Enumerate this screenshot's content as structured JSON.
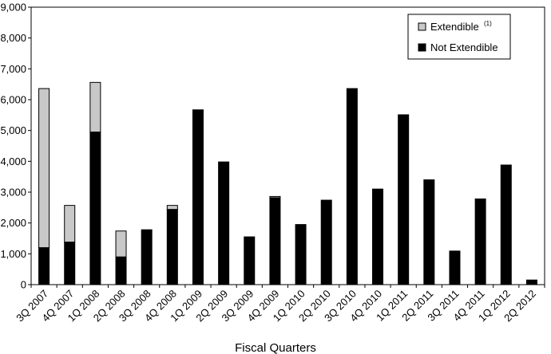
{
  "chart_data": {
    "type": "bar",
    "stacked": true,
    "xlabel": "Fiscal Quarters",
    "ylabel": "",
    "ylim": [
      0,
      9000
    ],
    "ytick_labels": [
      "0",
      "1,000",
      "2,000",
      "3,000",
      "4,000",
      "5,000",
      "6,000",
      "7,000",
      "8,000",
      "9,000"
    ],
    "grid": false,
    "legend_position": "top-right",
    "categories": [
      "3Q 2007",
      "4Q  2007",
      "1Q 2008",
      "2Q 2008",
      "3Q 2008",
      "4Q 2008",
      "1Q 2009",
      "2Q 2009",
      "3Q  2009",
      "4Q 2009",
      "1Q 2010",
      "2Q 2010",
      "3Q 2010",
      "4Q 2010",
      "1Q 2011",
      "2Q 2011",
      "3Q 2011",
      "4Q 2011",
      "1Q 2012",
      "2Q 2012"
    ],
    "series": [
      {
        "name": "Not Extendible",
        "color": "#000000",
        "values": [
          1200,
          1380,
          4950,
          900,
          1780,
          2440,
          5670,
          3980,
          1550,
          2820,
          1950,
          2740,
          6360,
          3100,
          5510,
          3400,
          1090,
          2780,
          3880,
          150
        ]
      },
      {
        "name": "Extendible",
        "superscript": "(1)",
        "color": "#c8c8c8",
        "values": [
          5160,
          1190,
          1610,
          840,
          0,
          130,
          0,
          0,
          0,
          40,
          0,
          0,
          0,
          0,
          0,
          0,
          0,
          0,
          0,
          0
        ]
      }
    ]
  }
}
